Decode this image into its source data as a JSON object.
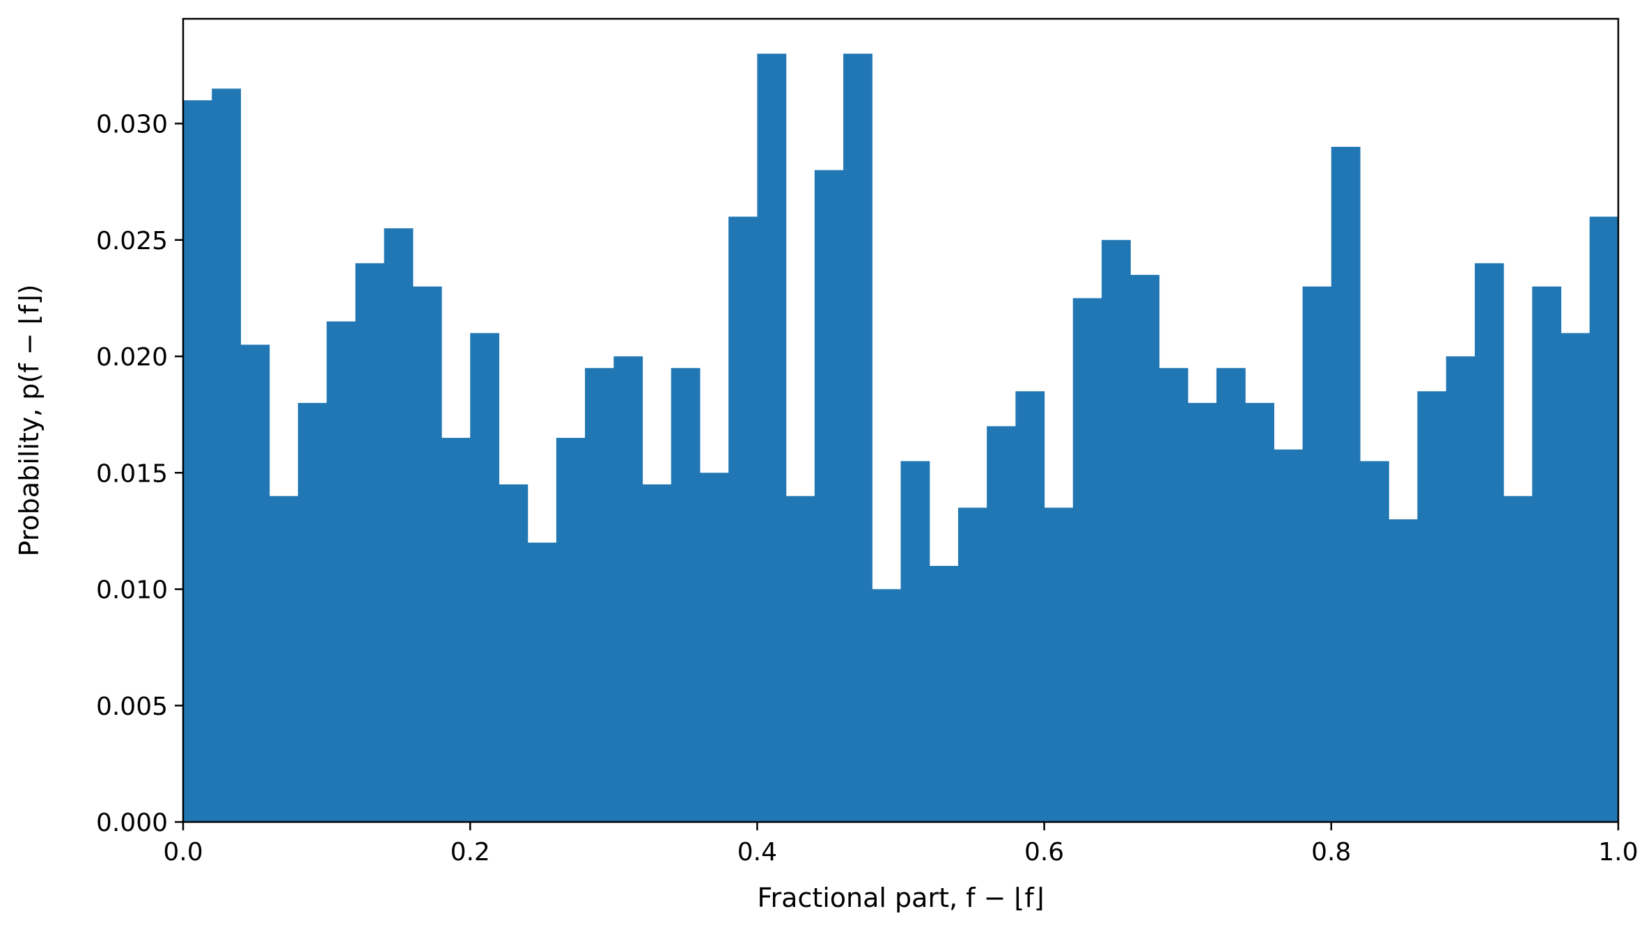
{
  "chart_data": {
    "type": "bar",
    "title": "",
    "xlabel": "Fractional part, f − ⌊f⌋",
    "ylabel": "Probability, p(f − ⌊f⌋)",
    "xlim": [
      0.0,
      1.0
    ],
    "ylim": [
      0.0,
      0.0345
    ],
    "bin_width": 0.02,
    "bin_edges_start": 0.0,
    "values": [
      0.031,
      0.0315,
      0.0205,
      0.014,
      0.018,
      0.0215,
      0.024,
      0.0255,
      0.023,
      0.0165,
      0.021,
      0.0145,
      0.012,
      0.0165,
      0.0195,
      0.02,
      0.0145,
      0.0195,
      0.015,
      0.026,
      0.033,
      0.014,
      0.028,
      0.033,
      0.01,
      0.0155,
      0.011,
      0.0135,
      0.017,
      0.0185,
      0.0135,
      0.0225,
      0.025,
      0.0235,
      0.0195,
      0.018,
      0.0195,
      0.018,
      0.016,
      0.023,
      0.029,
      0.0155,
      0.013,
      0.0185,
      0.02,
      0.024,
      0.014,
      0.023,
      0.021,
      0.026
    ],
    "xticks": [
      0.0,
      0.2,
      0.4,
      0.6,
      0.8,
      1.0
    ],
    "xtick_labels": [
      "0.0",
      "0.2",
      "0.4",
      "0.6",
      "0.8",
      "1.0"
    ],
    "yticks": [
      0.0,
      0.005,
      0.01,
      0.015,
      0.02,
      0.025,
      0.03
    ],
    "ytick_labels": [
      "0.000",
      "0.005",
      "0.010",
      "0.015",
      "0.020",
      "0.025",
      "0.030"
    ],
    "bar_color": "#2077b4",
    "grid": false,
    "legend": "none"
  }
}
